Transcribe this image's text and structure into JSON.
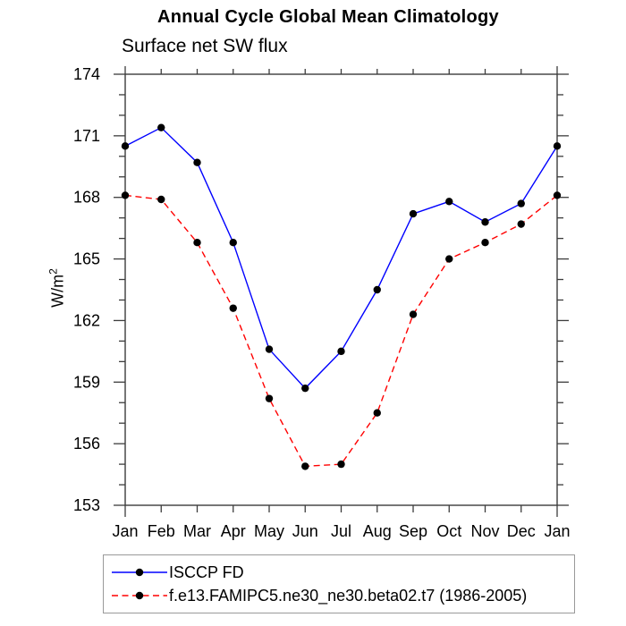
{
  "page": {
    "background": "#ffffff"
  },
  "chart_data": {
    "type": "line",
    "title": "Annual Cycle Global Mean Climatology",
    "subtitle": "Surface net SW flux",
    "ylabel": {
      "base": "W/m",
      "exp": "2"
    },
    "xlabel": "",
    "categories": [
      "Jan",
      "Feb",
      "Mar",
      "Apr",
      "May",
      "Jun",
      "Jul",
      "Aug",
      "Sep",
      "Oct",
      "Nov",
      "Dec",
      "Jan"
    ],
    "ylim": [
      153,
      174
    ],
    "y_major_step": 3,
    "y_minor_step": 1,
    "grid": false,
    "legend_position": "bottom-left",
    "axis_color": "#3c3c3c",
    "text_color": "#000000",
    "series": [
      {
        "name": "ISCCP FD",
        "color": "#0000ff",
        "line_style": "solid",
        "marker": "filled-circle",
        "marker_color": "#000000",
        "values": [
          170.5,
          171.4,
          169.7,
          165.8,
          160.6,
          158.7,
          160.5,
          163.5,
          167.2,
          167.8,
          166.8,
          167.7,
          170.5
        ]
      },
      {
        "name": "f.e13.FAMIPC5.ne30_ne30.beta02.t7 (1986-2005)",
        "color": "#ff0000",
        "line_style": "dashed",
        "marker": "filled-circle",
        "marker_color": "#000000",
        "values": [
          168.1,
          167.9,
          165.8,
          162.6,
          158.2,
          154.9,
          155.0,
          157.5,
          162.3,
          165.0,
          165.8,
          166.7,
          168.1
        ]
      }
    ]
  }
}
